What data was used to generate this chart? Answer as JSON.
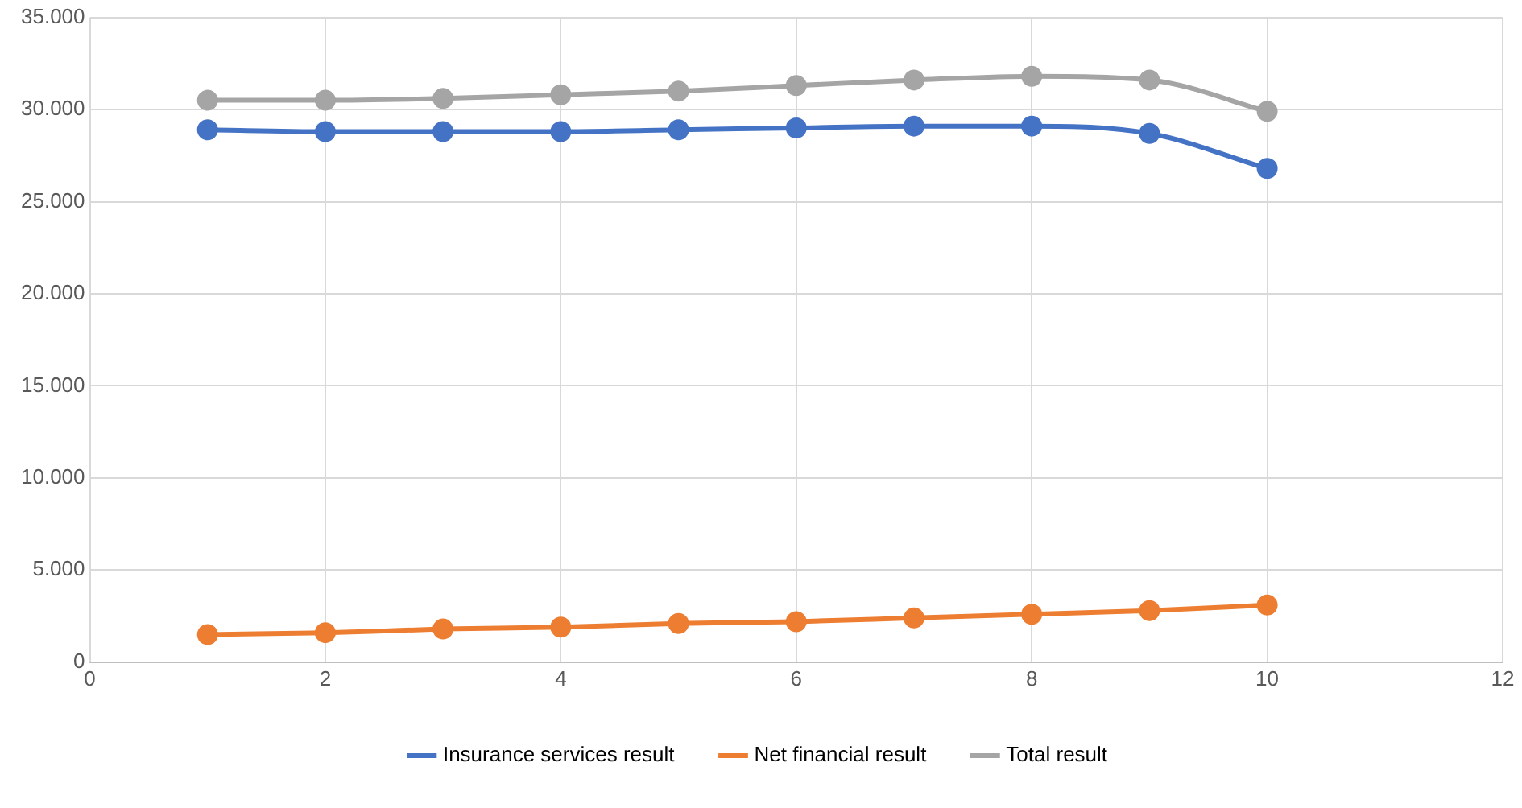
{
  "chart_data": {
    "type": "line",
    "x": [
      1,
      2,
      3,
      4,
      5,
      6,
      7,
      8,
      9,
      10
    ],
    "series": [
      {
        "name": "Insurance services result",
        "color": "#4472c4",
        "values": [
          28900,
          28800,
          28800,
          28800,
          28900,
          29000,
          29100,
          29100,
          28700,
          26800
        ]
      },
      {
        "name": "Net financial result",
        "color": "#ed7d31",
        "values": [
          1500,
          1600,
          1800,
          1900,
          2100,
          2200,
          2400,
          2600,
          2800,
          3100
        ]
      },
      {
        "name": "Total result",
        "color": "#a5a5a5",
        "values": [
          30500,
          30500,
          30600,
          30800,
          31000,
          31300,
          31600,
          31800,
          31600,
          29900
        ]
      }
    ],
    "xlim": [
      0,
      12
    ],
    "xticks": [
      0,
      2,
      4,
      6,
      8,
      10,
      12
    ],
    "ylim": [
      0,
      35000
    ],
    "yticks": [
      {
        "value": 0,
        "label": "0"
      },
      {
        "value": 5000,
        "label": "5.000"
      },
      {
        "value": 10000,
        "label": "10.000"
      },
      {
        "value": 15000,
        "label": "15.000"
      },
      {
        "value": 20000,
        "label": "20.000"
      },
      {
        "value": 25000,
        "label": "25.000"
      },
      {
        "value": 30000,
        "label": "30.000"
      },
      {
        "value": 35000,
        "label": "35.000"
      }
    ],
    "grid": true,
    "legend": "bottom",
    "marker": "circle",
    "line_style": "solid"
  }
}
